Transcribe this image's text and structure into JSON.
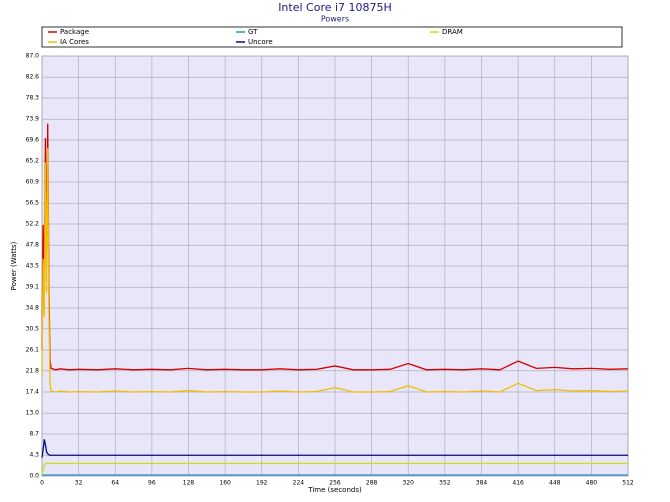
{
  "chart_data": {
    "type": "line",
    "title": "Intel Core i7 10875H",
    "subtitle": "Powers",
    "x_label": "Time (seconds)",
    "y_label": "Power (Watts)",
    "x": [
      0,
      1,
      2,
      3,
      4,
      5,
      6,
      7,
      8,
      12,
      16,
      24,
      32,
      48,
      64,
      80,
      96,
      112,
      128,
      144,
      160,
      176,
      192,
      208,
      224,
      240,
      256,
      272,
      288,
      304,
      320,
      336,
      352,
      368,
      384,
      400,
      416,
      432,
      448,
      464,
      480,
      496,
      512
    ],
    "series": [
      {
        "name": "Package",
        "color": "#d40000",
        "values": [
          26,
          52,
          38,
          70,
          45,
          73,
          40,
          24,
          22.3,
          22,
          22.2,
          22,
          22.1,
          22,
          22.2,
          22,
          22.1,
          22,
          22.3,
          22,
          22.1,
          22,
          22,
          22.2,
          22,
          22.1,
          22.8,
          22,
          22,
          22.1,
          23.3,
          22,
          22.1,
          22,
          22.2,
          22,
          23.8,
          22.3,
          22.5,
          22.2,
          22.3,
          22.1,
          22.2
        ]
      },
      {
        "name": "GT",
        "color": "#2a8fd0",
        "values": [
          0.2,
          0.2,
          0.2,
          0.2,
          0.2,
          0.2,
          0.2,
          0.2,
          0.2,
          0.2,
          0.2,
          0.2,
          0.2,
          0.2,
          0.2,
          0.2,
          0.2,
          0.2,
          0.2,
          0.2,
          0.2,
          0.2,
          0.2,
          0.2,
          0.2,
          0.2,
          0.2,
          0.2,
          0.2,
          0.2,
          0.2,
          0.2,
          0.2,
          0.2,
          0.2,
          0.2,
          0.2,
          0.2,
          0.2,
          0.2,
          0.2,
          0.2,
          0.2
        ]
      },
      {
        "name": "DRAM",
        "color": "#c8e020",
        "values": [
          0.3,
          1.2,
          2.2,
          2.6,
          2.6,
          2.6,
          2.7,
          2.6,
          2.6,
          2.6,
          2.6,
          2.6,
          2.6,
          2.6,
          2.6,
          2.6,
          2.6,
          2.6,
          2.6,
          2.6,
          2.6,
          2.6,
          2.6,
          2.6,
          2.6,
          2.6,
          2.6,
          2.6,
          2.6,
          2.6,
          2.6,
          2.6,
          2.6,
          2.6,
          2.6,
          2.6,
          2.6,
          2.6,
          2.6,
          2.6,
          2.6,
          2.6,
          2.6
        ]
      },
      {
        "name": "IA Cores",
        "color": "#f0c000",
        "values": [
          21,
          45,
          33,
          65,
          38,
          68,
          35,
          19,
          17.6,
          17.4,
          17.6,
          17.4,
          17.5,
          17.4,
          17.6,
          17.4,
          17.5,
          17.4,
          17.7,
          17.4,
          17.5,
          17.4,
          17.4,
          17.6,
          17.4,
          17.5,
          18.3,
          17.4,
          17.4,
          17.5,
          18.7,
          17.4,
          17.5,
          17.4,
          17.6,
          17.4,
          19.2,
          17.7,
          17.9,
          17.6,
          17.7,
          17.5,
          17.6
        ]
      },
      {
        "name": "Uncore",
        "color": "#0a0a80",
        "values": [
          3.8,
          5.5,
          7.6,
          6.5,
          5,
          4.6,
          4.4,
          4.3,
          4.3,
          4.3,
          4.3,
          4.3,
          4.3,
          4.3,
          4.3,
          4.3,
          4.3,
          4.3,
          4.3,
          4.3,
          4.3,
          4.3,
          4.3,
          4.3,
          4.3,
          4.3,
          4.3,
          4.3,
          4.3,
          4.3,
          4.3,
          4.3,
          4.3,
          4.3,
          4.3,
          4.3,
          4.3,
          4.3,
          4.3,
          4.3,
          4.3,
          4.3,
          4.3
        ]
      }
    ],
    "xlim": [
      0,
      512
    ],
    "xticks": [
      0,
      32,
      64,
      96,
      128,
      160,
      192,
      224,
      256,
      288,
      320,
      352,
      384,
      416,
      448,
      480,
      512
    ],
    "ylim": [
      0,
      87
    ],
    "yticks": [
      {
        "value": 0,
        "label": "0.0"
      },
      4.3,
      8.7,
      {
        "value": 13,
        "label": "13.0"
      },
      17.4,
      21.8,
      26.1,
      30.5,
      34.8,
      39.1,
      43.5,
      47.8,
      52.2,
      56.5,
      60.9,
      65.2,
      69.6,
      73.9,
      78.3,
      82.6,
      {
        "value": 87,
        "label": "87.0"
      }
    ],
    "grid": true
  }
}
